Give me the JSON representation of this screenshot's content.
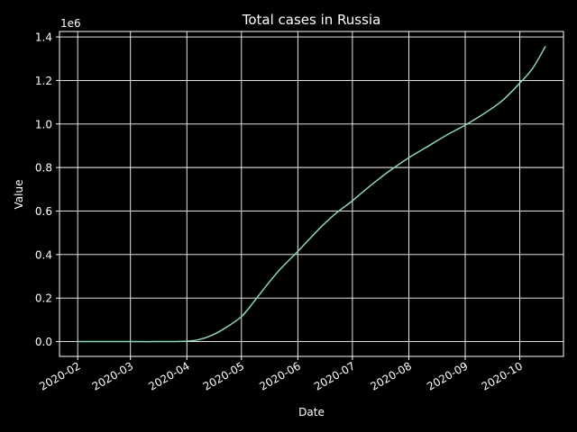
{
  "chart_data": {
    "type": "line",
    "title": "Total cases in Russia",
    "xlabel": "Date",
    "ylabel": "Value",
    "y_offset_label": "1e6",
    "colors": {
      "background": "#000000",
      "foreground": "#ffffff",
      "grid": "#ffffff",
      "line": "#8dd3c7"
    },
    "grid": true,
    "legend": "none",
    "xlim": [
      "2020-01-22",
      "2020-10-25"
    ],
    "ylim": [
      -68000,
      1425000
    ],
    "x_ticks": [
      {
        "date": "2020-02-01",
        "label": "2020-02"
      },
      {
        "date": "2020-03-01",
        "label": "2020-03"
      },
      {
        "date": "2020-04-01",
        "label": "2020-04"
      },
      {
        "date": "2020-05-01",
        "label": "2020-05"
      },
      {
        "date": "2020-06-01",
        "label": "2020-06"
      },
      {
        "date": "2020-07-01",
        "label": "2020-07"
      },
      {
        "date": "2020-08-01",
        "label": "2020-08"
      },
      {
        "date": "2020-09-01",
        "label": "2020-09"
      },
      {
        "date": "2020-10-01",
        "label": "2020-10"
      }
    ],
    "y_ticks": [
      {
        "value": 0,
        "label": "0.0"
      },
      {
        "value": 200000,
        "label": "0.2"
      },
      {
        "value": 400000,
        "label": "0.4"
      },
      {
        "value": 600000,
        "label": "0.6"
      },
      {
        "value": 800000,
        "label": "0.8"
      },
      {
        "value": 1000000,
        "label": "1.0"
      },
      {
        "value": 1200000,
        "label": "1.2"
      },
      {
        "value": 1400000,
        "label": "1.4"
      }
    ],
    "series": [
      {
        "x": [
          "2020-02-01",
          "2020-03-01",
          "2020-03-15",
          "2020-04-01",
          "2020-04-08",
          "2020-04-15",
          "2020-04-22",
          "2020-05-01",
          "2020-05-08",
          "2020-05-15",
          "2020-05-22",
          "2020-06-01",
          "2020-06-08",
          "2020-06-15",
          "2020-06-22",
          "2020-07-01",
          "2020-07-08",
          "2020-07-15",
          "2020-07-22",
          "2020-08-01",
          "2020-08-08",
          "2020-08-15",
          "2020-08-22",
          "2020-09-01",
          "2020-09-08",
          "2020-09-15",
          "2020-09-22",
          "2020-10-01",
          "2020-10-08",
          "2020-10-15"
        ],
        "y": [
          0,
          0,
          0,
          2000,
          10000,
          30000,
          62000,
          115000,
          185000,
          260000,
          330000,
          415000,
          477000,
          537000,
          590000,
          647000,
          697000,
          744000,
          788000,
          845000,
          880000,
          915000,
          950000,
          995000,
          1030000,
          1068000,
          1112000,
          1188000,
          1255000,
          1355000
        ]
      }
    ]
  }
}
